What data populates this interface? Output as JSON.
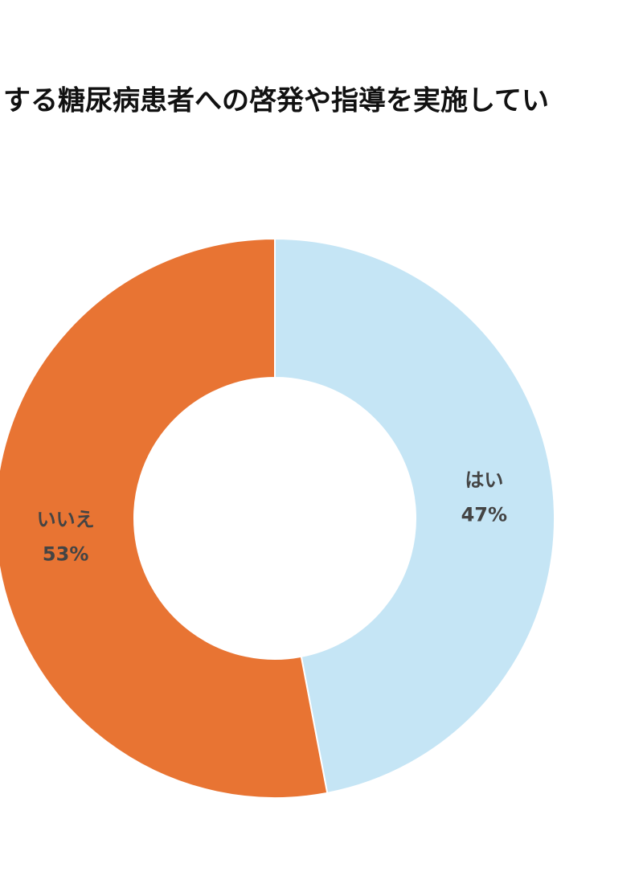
{
  "chart_data": {
    "type": "donut",
    "title": "する糖尿病患者への啓発や指導を実施してい",
    "categories": [
      "はい",
      "いいえ"
    ],
    "values": [
      47,
      53
    ],
    "value_labels": [
      "47%",
      "53%"
    ],
    "colors": [
      "#c5e5f5",
      "#e87433"
    ]
  }
}
